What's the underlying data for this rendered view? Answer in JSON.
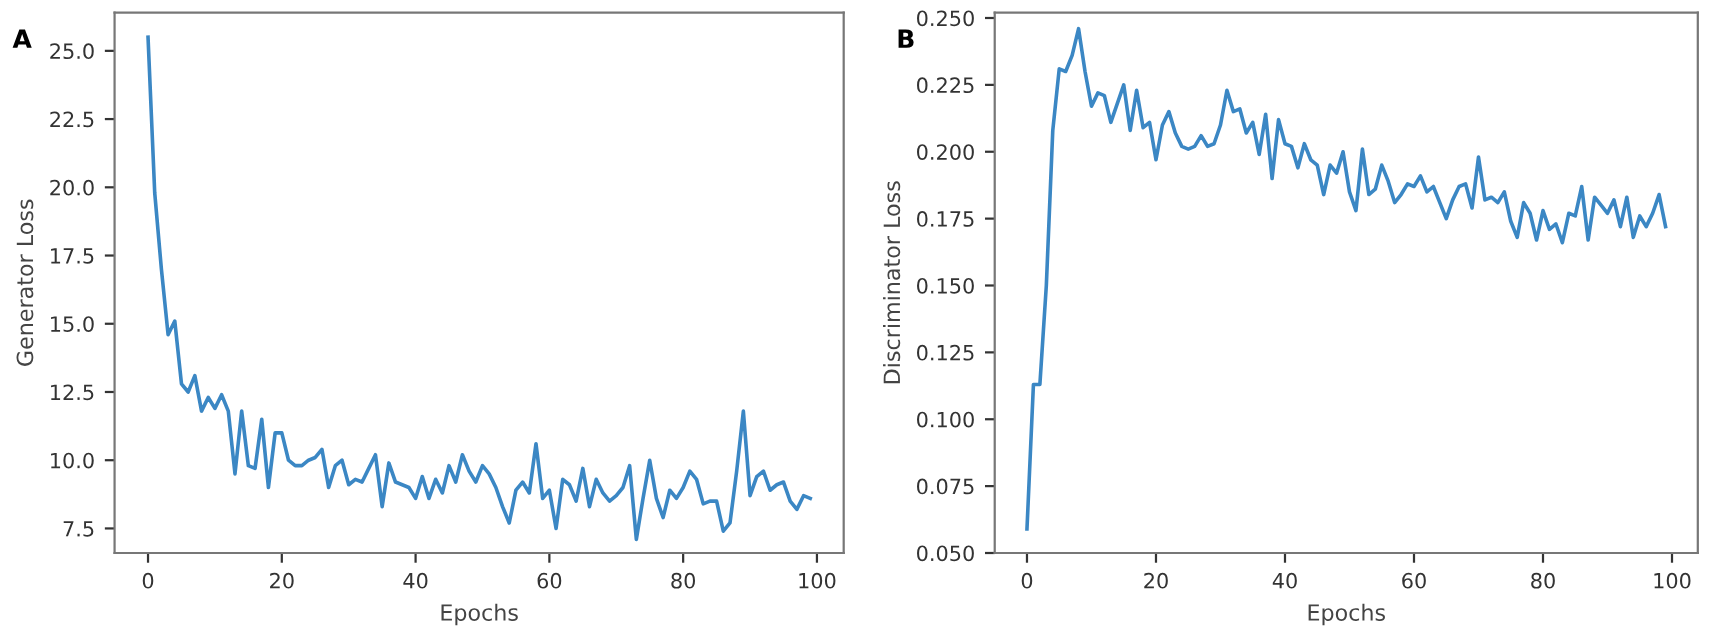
{
  "chart_data": [
    {
      "type": "line",
      "title": "A",
      "xlabel": "Epochs",
      "ylabel": "Generator Loss",
      "xlim": [
        -5,
        104
      ],
      "ylim": [
        6.6,
        26.4
      ],
      "xticks": [
        0,
        20,
        40,
        60,
        80,
        100
      ],
      "yticks": [
        7.5,
        {
          "value": 10,
          "label": "10.0"
        },
        12.5,
        {
          "value": 15,
          "label": "15.0"
        },
        17.5,
        {
          "value": 20,
          "label": "20.0"
        },
        22.5,
        {
          "value": 25,
          "label": "25.0"
        }
      ],
      "grid": false,
      "legend": false,
      "x": [
        0,
        1,
        2,
        3,
        4,
        5,
        6,
        7,
        8,
        9,
        10,
        11,
        12,
        13,
        14,
        15,
        16,
        17,
        18,
        19,
        20,
        21,
        22,
        23,
        24,
        25,
        26,
        27,
        28,
        29,
        30,
        31,
        32,
        33,
        34,
        35,
        36,
        37,
        38,
        39,
        40,
        41,
        42,
        43,
        44,
        45,
        46,
        47,
        48,
        49,
        50,
        51,
        52,
        53,
        54,
        55,
        56,
        57,
        58,
        59,
        60,
        61,
        62,
        63,
        64,
        65,
        66,
        67,
        68,
        69,
        70,
        71,
        72,
        73,
        74,
        75,
        76,
        77,
        78,
        79,
        80,
        81,
        82,
        83,
        84,
        85,
        86,
        87,
        88,
        89,
        90,
        91,
        92,
        93,
        94,
        95,
        96,
        97,
        98,
        99
      ],
      "series": [
        {
          "color": "#3b87c4",
          "values": [
            25.5,
            19.8,
            17.0,
            14.6,
            15.1,
            12.8,
            12.5,
            13.1,
            11.8,
            12.3,
            11.9,
            12.4,
            11.8,
            9.5,
            11.8,
            9.8,
            9.7,
            11.5,
            9.0,
            11.0,
            11.0,
            10.0,
            9.8,
            9.8,
            10.0,
            10.1,
            10.4,
            9.0,
            9.8,
            10.0,
            9.1,
            9.3,
            9.2,
            9.7,
            10.2,
            8.3,
            9.9,
            9.2,
            9.1,
            9.0,
            8.6,
            9.4,
            8.6,
            9.3,
            8.8,
            9.8,
            9.2,
            10.2,
            9.6,
            9.2,
            9.8,
            9.5,
            9.0,
            8.3,
            7.7,
            8.9,
            9.2,
            8.8,
            10.6,
            8.6,
            8.9,
            7.5,
            9.3,
            9.1,
            8.5,
            9.7,
            8.3,
            9.3,
            8.8,
            8.5,
            8.7,
            9.0,
            9.8,
            7.1,
            8.6,
            10.0,
            8.6,
            7.9,
            8.9,
            8.6,
            9.0,
            9.6,
            9.3,
            8.4,
            8.5,
            8.5,
            7.4,
            7.7,
            9.6,
            11.8,
            8.7,
            9.4,
            9.6,
            8.9,
            9.1,
            9.2,
            8.5,
            8.2,
            8.7,
            8.6
          ]
        }
      ]
    },
    {
      "type": "line",
      "title": "B",
      "xlabel": "Epochs",
      "ylabel": "Discriminator Loss",
      "xlim": [
        -5,
        104
      ],
      "ylim": [
        0.05,
        0.252
      ],
      "xticks": [
        0,
        20,
        40,
        60,
        80,
        100
      ],
      "yticks": [
        {
          "value": 0.05,
          "label": "0.050"
        },
        {
          "value": 0.075,
          "label": "0.075"
        },
        {
          "value": 0.1,
          "label": "0.100"
        },
        {
          "value": 0.125,
          "label": "0.125"
        },
        {
          "value": 0.15,
          "label": "0.150"
        },
        {
          "value": 0.175,
          "label": "0.175"
        },
        {
          "value": 0.2,
          "label": "0.200"
        },
        {
          "value": 0.225,
          "label": "0.225"
        },
        {
          "value": 0.25,
          "label": "0.250"
        }
      ],
      "grid": false,
      "legend": false,
      "x": [
        0,
        1,
        2,
        3,
        4,
        5,
        6,
        7,
        8,
        9,
        10,
        11,
        12,
        13,
        14,
        15,
        16,
        17,
        18,
        19,
        20,
        21,
        22,
        23,
        24,
        25,
        26,
        27,
        28,
        29,
        30,
        31,
        32,
        33,
        34,
        35,
        36,
        37,
        38,
        39,
        40,
        41,
        42,
        43,
        44,
        45,
        46,
        47,
        48,
        49,
        50,
        51,
        52,
        53,
        54,
        55,
        56,
        57,
        58,
        59,
        60,
        61,
        62,
        63,
        64,
        65,
        66,
        67,
        68,
        69,
        70,
        71,
        72,
        73,
        74,
        75,
        76,
        77,
        78,
        79,
        80,
        81,
        82,
        83,
        84,
        85,
        86,
        87,
        88,
        89,
        90,
        91,
        92,
        93,
        94,
        95,
        96,
        97,
        98,
        99
      ],
      "series": [
        {
          "color": "#3b87c4",
          "values": [
            0.059,
            0.113,
            0.113,
            0.15,
            0.208,
            0.231,
            0.23,
            0.236,
            0.246,
            0.23,
            0.217,
            0.222,
            0.221,
            0.211,
            0.218,
            0.225,
            0.208,
            0.223,
            0.209,
            0.211,
            0.197,
            0.21,
            0.215,
            0.207,
            0.202,
            0.201,
            0.202,
            0.206,
            0.202,
            0.203,
            0.21,
            0.223,
            0.215,
            0.216,
            0.207,
            0.211,
            0.199,
            0.214,
            0.19,
            0.212,
            0.203,
            0.202,
            0.194,
            0.203,
            0.197,
            0.195,
            0.184,
            0.195,
            0.192,
            0.2,
            0.185,
            0.178,
            0.201,
            0.184,
            0.186,
            0.195,
            0.189,
            0.181,
            0.184,
            0.188,
            0.187,
            0.191,
            0.185,
            0.187,
            0.181,
            0.175,
            0.182,
            0.187,
            0.188,
            0.179,
            0.198,
            0.182,
            0.183,
            0.181,
            0.185,
            0.174,
            0.168,
            0.181,
            0.177,
            0.167,
            0.178,
            0.171,
            0.173,
            0.166,
            0.177,
            0.176,
            0.187,
            0.167,
            0.183,
            0.18,
            0.177,
            0.182,
            0.172,
            0.183,
            0.168,
            0.176,
            0.172,
            0.177,
            0.184,
            0.172
          ]
        }
      ]
    }
  ]
}
